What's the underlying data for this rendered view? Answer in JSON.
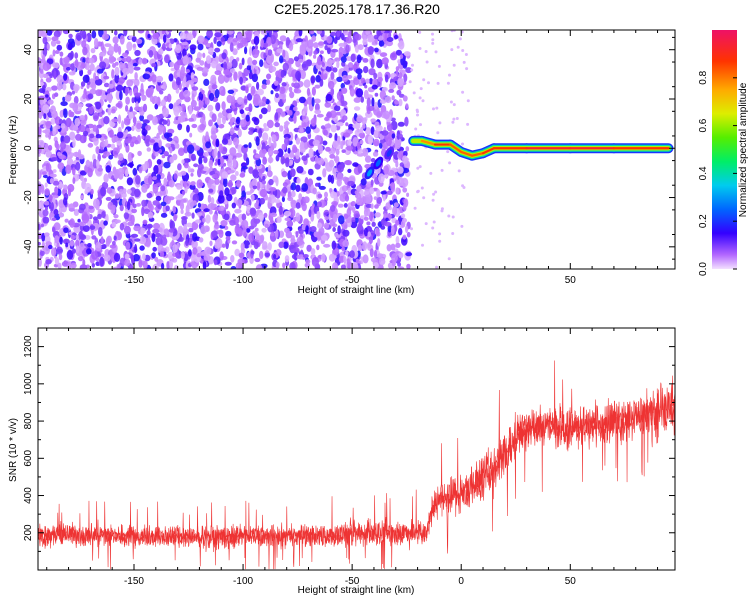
{
  "title": "C2E5.2025.178.17.36.R20",
  "chart_data": [
    {
      "type": "heatmap",
      "xlabel": "Height of straight line (km)",
      "ylabel": "Frequency (Hz)",
      "xlim": [
        -194,
        98
      ],
      "ylim": [
        -49,
        48
      ],
      "xticks": [
        -150,
        -100,
        -50,
        0,
        50
      ],
      "yticks": [
        -40,
        -20,
        0,
        20,
        40
      ],
      "colorbar": {
        "label": "Normalized spectral amplitude",
        "range": [
          0,
          1
        ],
        "ticks": [
          0.0,
          0.2,
          0.4,
          0.6,
          0.8
        ],
        "tick_labels": [
          "0.0",
          "0.2",
          "0.4",
          "0.6",
          "0.8"
        ]
      },
      "noise_region": {
        "x_from": -194,
        "x_to": -24,
        "typical_amplitude": 0.1
      },
      "ridge_points": [
        {
          "x": -42,
          "y": -10,
          "amp": 0.3
        },
        {
          "x": -38,
          "y": -6,
          "amp": 0.25
        },
        {
          "x": -33,
          "y": -2,
          "amp": 0.2
        },
        {
          "x": -22,
          "y": 3,
          "amp": 0.75
        },
        {
          "x": -18,
          "y": 3,
          "amp": 0.8
        },
        {
          "x": -12,
          "y": 1.5,
          "amp": 0.9
        },
        {
          "x": -5,
          "y": 1.5,
          "amp": 0.9
        },
        {
          "x": 0,
          "y": -1.5,
          "amp": 0.85
        },
        {
          "x": 5,
          "y": -3,
          "amp": 0.85
        },
        {
          "x": 10,
          "y": -2,
          "amp": 0.9
        },
        {
          "x": 15,
          "y": 0,
          "amp": 0.9
        },
        {
          "x": 30,
          "y": 0,
          "amp": 0.95
        },
        {
          "x": 50,
          "y": 0,
          "amp": 0.95
        },
        {
          "x": 70,
          "y": 0,
          "amp": 0.95
        },
        {
          "x": 95,
          "y": 0,
          "amp": 0.9
        }
      ]
    },
    {
      "type": "line",
      "xlabel": "Height of straight line (km)",
      "ylabel": "SNR (10 * v/v)",
      "xlim": [
        -194,
        98
      ],
      "ylim": [
        0,
        1300
      ],
      "xticks": [
        -150,
        -100,
        -50,
        0,
        50
      ],
      "yticks": [
        200,
        400,
        600,
        800,
        1000,
        1200
      ],
      "color": "#ee3333",
      "series": [
        {
          "x": [
            -194,
            -180,
            -160,
            -140,
            -120,
            -100,
            -80,
            -60,
            -40,
            -25,
            -16,
            -12,
            -5,
            0,
            5,
            10,
            15,
            20,
            25,
            30,
            40,
            50,
            60,
            70,
            80,
            90,
            98
          ],
          "mean": [
            180,
            190,
            185,
            180,
            175,
            180,
            180,
            185,
            200,
            200,
            200,
            370,
            400,
            420,
            450,
            500,
            550,
            620,
            720,
            760,
            780,
            760,
            780,
            800,
            820,
            850,
            880
          ],
          "spread": [
            70,
            70,
            70,
            70,
            70,
            70,
            70,
            75,
            85,
            85,
            85,
            110,
            115,
            120,
            130,
            140,
            150,
            150,
            140,
            135,
            130,
            130,
            130,
            130,
            135,
            160,
            190
          ]
        }
      ]
    }
  ]
}
